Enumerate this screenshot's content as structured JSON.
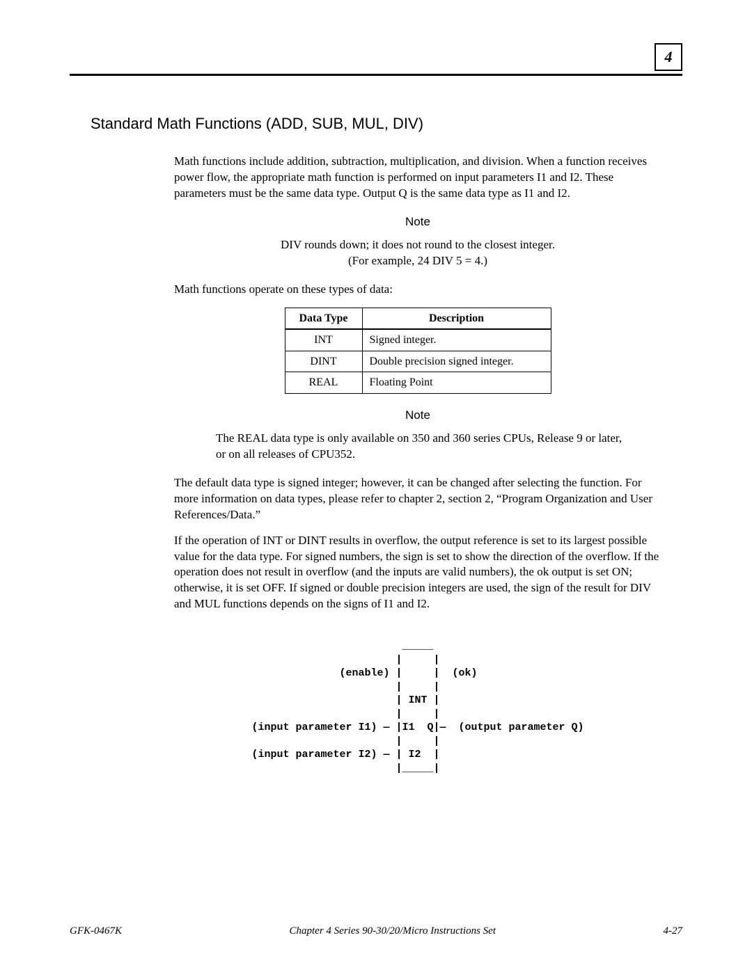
{
  "chapter_number": "4",
  "heading": "Standard Math Functions (ADD, SUB, MUL, DIV)",
  "para1": "Math functions include addition, subtraction, multiplication, and division.  When a function receives power flow, the appropriate math function is performed on input parameters I1 and I2.  These parameters must be the same data type.  Output Q is the same data type as I1 and I2.",
  "note1_label": "Note",
  "note1_line1": "DIV rounds down; it does not round to the closest integer.",
  "note1_line2": "(For example, 24 DIV 5 = 4.)",
  "para2": "Math functions operate on these types of data:",
  "table": {
    "headers": [
      "Data Type",
      "Description"
    ],
    "rows": [
      [
        "INT",
        "Signed integer."
      ],
      [
        "DINT",
        "Double precision signed integer."
      ],
      [
        "REAL",
        "Floating Point"
      ]
    ]
  },
  "note2_label": "Note",
  "note2_body": "The REAL data type is only available on 350 and 360 series CPUs, Release 9 or later, or on all releases of CPU352.",
  "para3": "The default data type is signed integer; however, it can be changed after selecting the function.  For more information on data types, please refer to chapter 2, section 2, “Program Organization and User References/Data.”",
  "para4": "If the operation of INT or DINT results in overflow, the output reference is set to its largest possible value for the data type.  For signed numbers, the sign is set to show the direction of the overflow.  If the operation does not result in overflow (and the inputs are valid numbers), the ok output is set ON; otherwise, it is set OFF.  If signed or double precision integers are used, the sign of the result for DIV and MUL functions depends on the signs of I1 and I2.",
  "diagram": "                        _____\n                       |     |\n              (enable) |     |  (ok)\n                       |     |\n                       | INT |\n                       |     |\n(input parameter I1) — |I1  Q|—  (output parameter Q)\n                       |     |\n(input parameter I2) — | I2  |\n                       |_____|",
  "footer": {
    "left": "GFK-0467K",
    "center": "Chapter 4  Series 90-30/20/Micro Instructions Set",
    "right": "4-27"
  }
}
